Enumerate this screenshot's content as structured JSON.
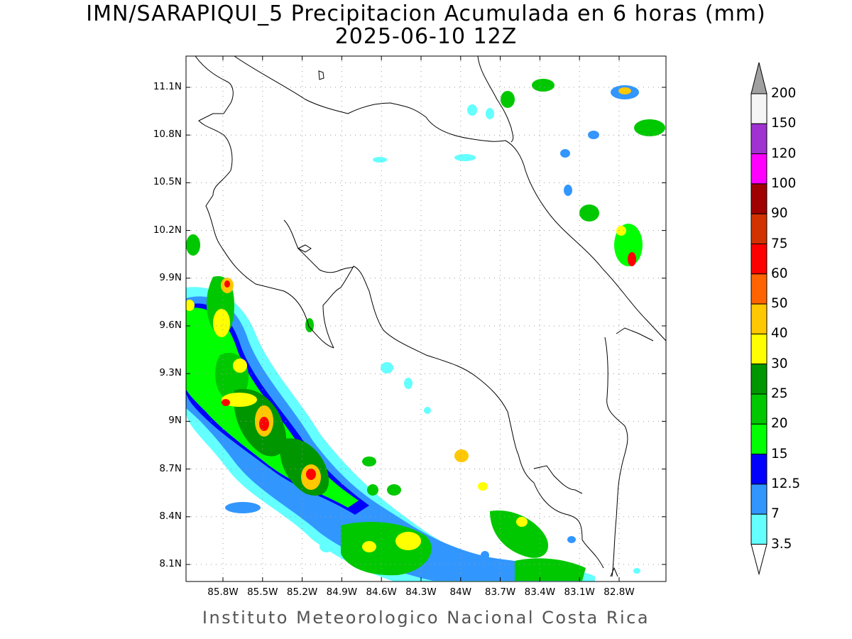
{
  "map": {
    "title_line1": "IMN/SARAPIQUI_5 Precipitacion Acumulada en 6 horas (mm)",
    "title_line2": "2025-06-10 12Z",
    "footer": "Instituto Meteorologico Nacional Costa Rica",
    "lat_ticks": [
      "11.1N",
      "10.8N",
      "10.5N",
      "10.2N",
      "9.9N",
      "9.6N",
      "9.3N",
      "9N",
      "8.7N",
      "8.4N",
      "8.1N"
    ],
    "lon_ticks": [
      "85.8W",
      "85.5W",
      "85.2W",
      "84.9W",
      "84.6W",
      "84.3W",
      "84W",
      "83.7W",
      "83.4W",
      "83.1W",
      "82.8W"
    ],
    "colorbar": {
      "labels": [
        "200",
        "150",
        "120",
        "100",
        "90",
        "75",
        "60",
        "50",
        "40",
        "30",
        "25",
        "20",
        "15",
        "12.5",
        "7",
        "3.5"
      ],
      "colors": [
        "#a0a0a0",
        "#f5f5f5",
        "#a032d2",
        "#ff00ff",
        "#a00000",
        "#d23200",
        "#ff0000",
        "#ff6400",
        "#ffc800",
        "#ffff00",
        "#009600",
        "#00c800",
        "#00ff00",
        "#0000ff",
        "#3296ff",
        "#64ffff",
        "#ffffff"
      ]
    }
  }
}
